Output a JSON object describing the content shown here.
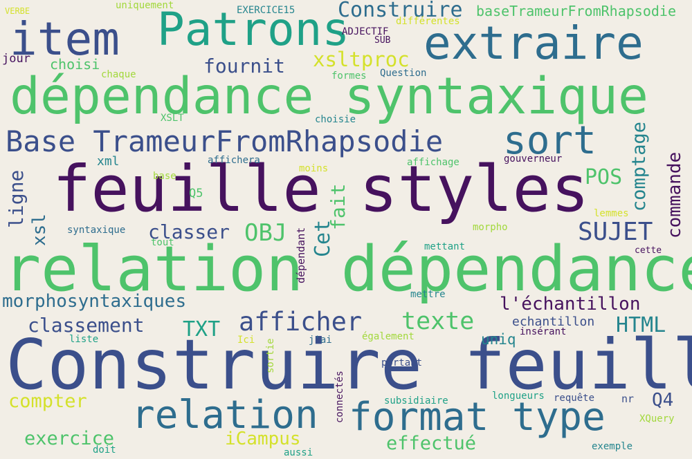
{
  "palette": {
    "background": "#f2eee6",
    "dark_purple": "#46125e",
    "indigo": "#3b4f8b",
    "blue": "#2e6d8e",
    "teal": "#25858e",
    "sea_green": "#1fa187",
    "green": "#4ec36b",
    "lime": "#a2d83c",
    "yellow": "#d4e12b"
  },
  "words": {
    "w_construire_feuille": "Construire feuille",
    "w_relation_dependance": "relation dépendance",
    "w_feuille_styles": "feuille styles",
    "w_dependance_syntaxique": "dépendance syntaxique",
    "w_patrons": "Patrons",
    "w_extraire": "extraire",
    "w_item": "item",
    "w_relation": "relation",
    "w_format_type": "format type",
    "w_base_trameur": "Base TrameurFromRhapsodie",
    "w_sort": "sort",
    "w_construire_top": "Construire",
    "w_basetrameur_top": "baseTrameurFromRhapsodie",
    "w_afficher": "afficher",
    "w_texte": "texte",
    "w_sujet": "SUJET",
    "w_obj": "OBJ",
    "w_classer": "classer",
    "w_fournit": "fournit",
    "w_xsltproc": "xsltproc",
    "w_morphosyntaxiques": "morphosyntaxiques",
    "w_l_echantillon": "l'échantillon",
    "w_classement": "classement",
    "w_txt": "TXT",
    "w_html": "HTML",
    "w_compter": "compter",
    "w_exercice": "exercice",
    "w_icampus": "iCampus",
    "w_effectue": "effectué",
    "w_q4": "Q4",
    "w_pos": "POS",
    "w_echantillon": "echantillon",
    "w_uniq": "uniq",
    "w_choisi": "choisi",
    "w_jour": "jour",
    "w_xml": "xml",
    "w_q5": "Q5",
    "w_verbe": "VERBE",
    "w_uniquement": "uniquement",
    "w_exercice15": "EXERCICE15",
    "w_differentes": "différentes",
    "w_adjectif": "ADJECTIF",
    "w_sub": "SUB",
    "w_question": "Question",
    "w_formes": "formes",
    "w_chaque": "chaque",
    "w_xslt": "XSLT",
    "w_choisie": "choisie",
    "w_affichera": "affichera",
    "w_base": "base",
    "w_moins": "moins",
    "w_affichage": "affichage",
    "w_gouverneur": "gouverneur",
    "w_syntaxique": "syntaxique",
    "w_tout": "tout",
    "w_lemmes": "lemmes",
    "w_morpho": "morpho",
    "w_mettant": "mettant",
    "w_cette": "cette",
    "w_mettre": "mettre",
    "w_liste": "liste",
    "w_ici": "Ici",
    "w_jai": "j'ai",
    "w_egalement": "également",
    "w_inserant": "insérant",
    "w_portant": "portant",
    "w_subsidiaire": "subsidiaire",
    "w_longueurs": "longueurs",
    "w_requete": "requête",
    "w_nr": "nr",
    "w_xquery": "XQuery",
    "w_exemple": "exemple",
    "w_doit": "doit",
    "w_aussi": "aussi",
    "w_ligne": "ligne",
    "w_xsl": "xsl",
    "w_fait": "fait",
    "w_cet": "Cet",
    "w_comptage": "comptage",
    "w_commande": "commande",
    "w_dependant": "dépendant",
    "w_sortie": "sortie",
    "w_connectes": "connectés"
  }
}
